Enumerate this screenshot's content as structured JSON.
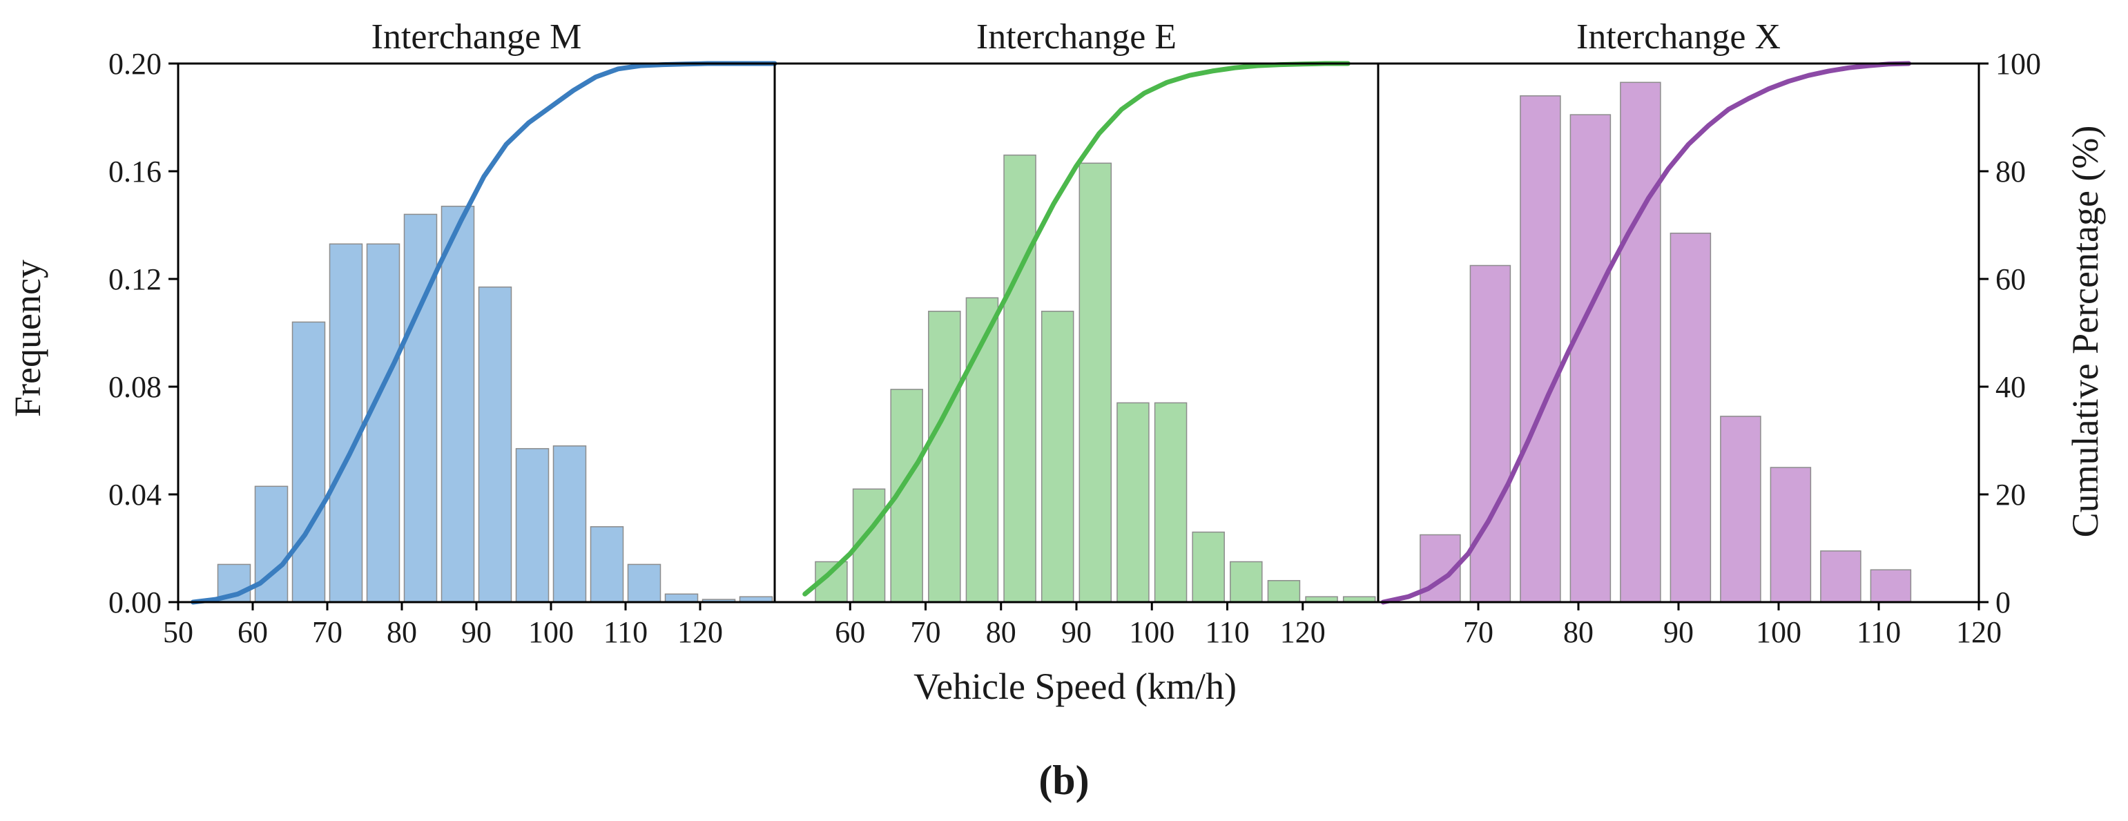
{
  "figure": {
    "caption": "(b)",
    "xlabel": "Vehicle Speed (km/h)",
    "ylabel_left": "Frequency",
    "ylabel_right": "Cumulative Percentage (%)"
  },
  "chart_data": [
    {
      "type": "bar",
      "title": "Interchange M",
      "xlim": [
        50,
        130
      ],
      "x_ticks": [
        "50",
        "60",
        "70",
        "80",
        "90",
        "100",
        "110",
        "120"
      ],
      "ylim": [
        0,
        0.2
      ],
      "y_ticks": [
        "0.00",
        "0.04",
        "0.08",
        "0.12",
        "0.16",
        "0.20"
      ],
      "bar_color": "#9dc3e6",
      "line_color": "#3a7dbf",
      "bin_centers": [
        57.5,
        62.5,
        67.5,
        72.5,
        77.5,
        82.5,
        87.5,
        92.5,
        97.5,
        102.5,
        107.5,
        112.5,
        117.5,
        122.5,
        127.5
      ],
      "frequency": [
        0.014,
        0.043,
        0.104,
        0.133,
        0.133,
        0.144,
        0.147,
        0.117,
        0.057,
        0.058,
        0.028,
        0.014,
        0.003,
        0.001,
        0.002
      ],
      "cumulative_percent": {
        "x": [
          52,
          55,
          58,
          61,
          64,
          67,
          70,
          73,
          76,
          79,
          82,
          85,
          88,
          91,
          94,
          97,
          100,
          103,
          106,
          109,
          112,
          115,
          118,
          121,
          124,
          127,
          130
        ],
        "y": [
          0,
          0.5,
          1.5,
          3.5,
          7,
          12.5,
          19.5,
          27.5,
          36,
          44.5,
          53.5,
          62.5,
          71,
          79,
          85,
          89,
          92,
          95,
          97.5,
          99,
          99.6,
          99.8,
          99.9,
          100,
          100,
          100,
          100
        ]
      }
    },
    {
      "type": "bar",
      "title": "Interchange E",
      "xlim": [
        50,
        130
      ],
      "x_ticks": [
        "60",
        "70",
        "80",
        "90",
        "100",
        "110",
        "120"
      ],
      "ylim": [
        0,
        0.2
      ],
      "bar_color": "#a8dba8",
      "line_color": "#4cb84c",
      "bin_centers": [
        57.5,
        62.5,
        67.5,
        72.5,
        77.5,
        82.5,
        87.5,
        92.5,
        97.5,
        102.5,
        107.5,
        112.5,
        117.5,
        122.5,
        127.5
      ],
      "frequency": [
        0.015,
        0.042,
        0.079,
        0.108,
        0.113,
        0.166,
        0.108,
        0.163,
        0.074,
        0.074,
        0.026,
        0.015,
        0.008,
        0.002,
        0.002
      ],
      "cumulative_percent": {
        "x": [
          54,
          57,
          60,
          63,
          66,
          69,
          72,
          75,
          78,
          81,
          84,
          87,
          90,
          93,
          96,
          99,
          102,
          105,
          108,
          111,
          114,
          117,
          120,
          123,
          126
        ],
        "y": [
          1.5,
          5,
          9,
          14,
          19.5,
          26,
          33.5,
          41.5,
          49.5,
          57.5,
          66,
          74,
          81,
          87,
          91.5,
          94.5,
          96.5,
          97.8,
          98.6,
          99.2,
          99.6,
          99.8,
          99.9,
          100,
          100
        ]
      }
    },
    {
      "type": "bar",
      "title": "Interchange X",
      "xlim": [
        60,
        120
      ],
      "x_ticks": [
        "70",
        "80",
        "90",
        "100",
        "110",
        "120"
      ],
      "ylim": [
        0,
        100
      ],
      "y_ticks": [
        "0",
        "20",
        "40",
        "60",
        "80",
        "100"
      ],
      "bar_color": "#cfa3d8",
      "line_color": "#8c4aa6",
      "bin_centers": [
        66.2,
        71.2,
        76.2,
        81.2,
        86.2,
        91.2,
        96.2,
        101.2,
        106.2,
        111.2
      ],
      "frequency": [
        0.025,
        0.125,
        0.188,
        0.181,
        0.193,
        0.137,
        0.069,
        0.05,
        0.019,
        0.012
      ],
      "cumulative_percent": {
        "x": [
          60.5,
          63,
          65,
          67,
          69,
          71,
          73,
          75,
          77,
          79,
          81,
          83,
          85,
          87,
          89,
          91,
          93,
          95,
          97,
          99,
          101,
          103,
          105,
          107,
          109,
          111,
          113
        ],
        "y": [
          0,
          1,
          2.5,
          5,
          9,
          15,
          22,
          30,
          38.5,
          46.5,
          54,
          61.5,
          68.5,
          75,
          80.5,
          85,
          88.5,
          91.5,
          93.5,
          95.3,
          96.7,
          97.8,
          98.6,
          99.2,
          99.6,
          99.9,
          100
        ]
      }
    }
  ]
}
